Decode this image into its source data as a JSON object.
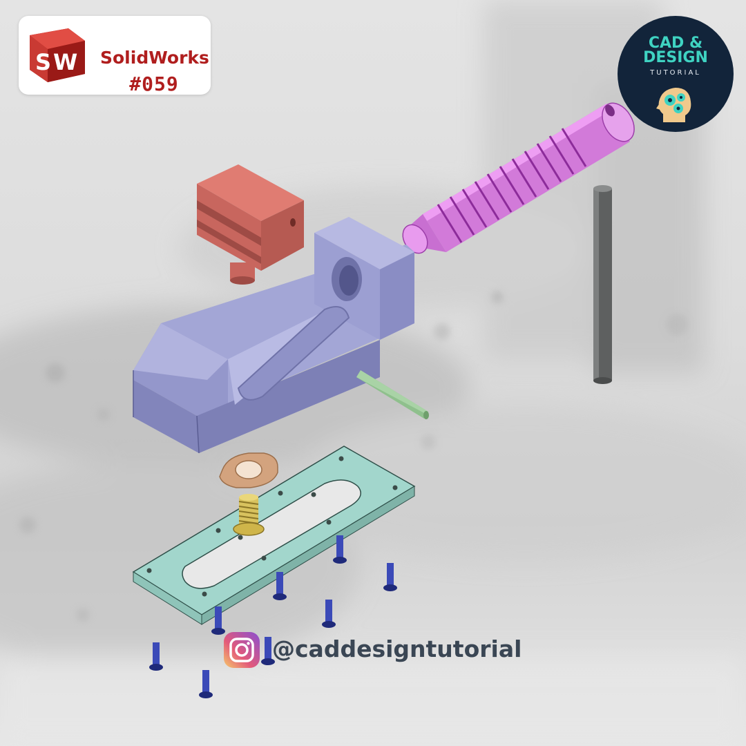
{
  "header": {
    "app_name": "SolidWorks",
    "tutorial_number": "#059",
    "logo_letters": "SW"
  },
  "brand": {
    "line1": "CAD &",
    "line2": "DESIGN",
    "line3": "TUTORIAL"
  },
  "footer": {
    "handle": "@caddesigntutorial",
    "icon": "instagram-icon"
  },
  "parts": [
    {
      "name": "vise-body",
      "color": "#9497cb"
    },
    {
      "name": "movable-jaw",
      "color": "#c86a62"
    },
    {
      "name": "lead-screw",
      "color": "#dd7fe6"
    },
    {
      "name": "handle-bar",
      "color": "#5e6060"
    },
    {
      "name": "dowel-pin",
      "color": "#8fc08d"
    },
    {
      "name": "washer",
      "color": "#d3a37e"
    },
    {
      "name": "threaded-stud",
      "color": "#d8c25e"
    },
    {
      "name": "base-plate",
      "color": "#a2d6cc"
    },
    {
      "name": "screws",
      "color": "#2f3aa0"
    }
  ],
  "colors": {
    "logo_red": "#b01e1e",
    "badge_navy": "#12243a",
    "badge_teal": "#3fd3c2"
  }
}
